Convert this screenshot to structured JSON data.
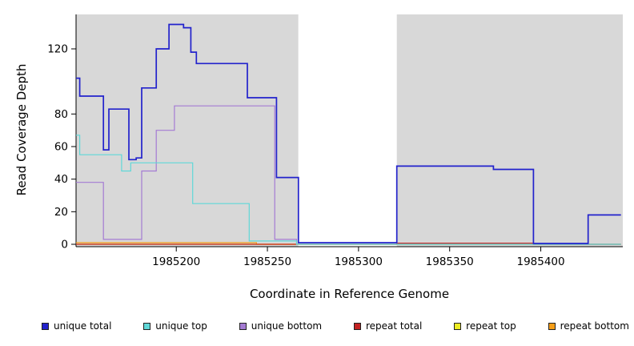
{
  "chart_data": {
    "type": "line",
    "title": "",
    "xlabel": "Coordinate in Reference Genome",
    "ylabel": "Read Coverage Depth",
    "xlim": [
      1985145,
      1985445
    ],
    "ylim": [
      0,
      141
    ],
    "x_ticks": [
      1985200,
      1985250,
      1985300,
      1985350,
      1985400
    ],
    "y_ticks": [
      0,
      20,
      40,
      60,
      80,
      120
    ],
    "grid": false,
    "legend_position": "bottom",
    "background_regions": [
      {
        "name": "left-shaded",
        "x0": 1985145,
        "x1": 1985267,
        "color": "#d8d8d8"
      },
      {
        "name": "middle-gap",
        "x0": 1985267,
        "x1": 1985321,
        "color": "#ffffff"
      },
      {
        "name": "right-shaded",
        "x0": 1985321,
        "x1": 1985445,
        "color": "#d8d8d8"
      }
    ],
    "series": [
      {
        "label": "unique total",
        "color": "#2222CC",
        "steps": [
          [
            1985145,
            102
          ],
          [
            1985147,
            91
          ],
          [
            1985160,
            58
          ],
          [
            1985163,
            83
          ],
          [
            1985174,
            52
          ],
          [
            1985178,
            53
          ],
          [
            1985181,
            96
          ],
          [
            1985189,
            120
          ],
          [
            1985196,
            135
          ],
          [
            1985204,
            133
          ],
          [
            1985208,
            118
          ],
          [
            1985211,
            111
          ],
          [
            1985239,
            90
          ],
          [
            1985255,
            41
          ],
          [
            1985267,
            1
          ],
          [
            1985321,
            48
          ],
          [
            1985374,
            46
          ],
          [
            1985396,
            0.5
          ],
          [
            1985426,
            18
          ],
          [
            1985444,
            18
          ]
        ]
      },
      {
        "label": "unique top",
        "color": "#5FD7D7",
        "steps": [
          [
            1985145,
            67
          ],
          [
            1985147,
            55
          ],
          [
            1985170,
            45
          ],
          [
            1985175,
            50
          ],
          [
            1985209,
            25
          ],
          [
            1985240,
            2
          ],
          [
            1985266,
            0
          ],
          [
            1985444,
            0
          ]
        ]
      },
      {
        "label": "unique bottom",
        "color": "#A47BD3",
        "steps": [
          [
            1985145,
            38
          ],
          [
            1985160,
            3
          ],
          [
            1985181,
            45
          ],
          [
            1985189,
            70
          ],
          [
            1985199,
            85
          ],
          [
            1985254,
            3
          ],
          [
            1985266,
            0
          ],
          [
            1985444,
            0
          ]
        ]
      },
      {
        "label": "repeat total",
        "color": "#C42222",
        "steps": [
          [
            1985145,
            0
          ],
          [
            1985321,
            0.7
          ],
          [
            1985396,
            0
          ],
          [
            1985444,
            0
          ]
        ]
      },
      {
        "label": "repeat top",
        "color": "#EDED22",
        "steps": [
          [
            1985145,
            0
          ],
          [
            1985444,
            0
          ]
        ]
      },
      {
        "label": "repeat bottom",
        "color": "#F59E18",
        "steps": [
          [
            1985145,
            1
          ],
          [
            1985244,
            0
          ],
          [
            1985444,
            0
          ]
        ]
      }
    ]
  }
}
